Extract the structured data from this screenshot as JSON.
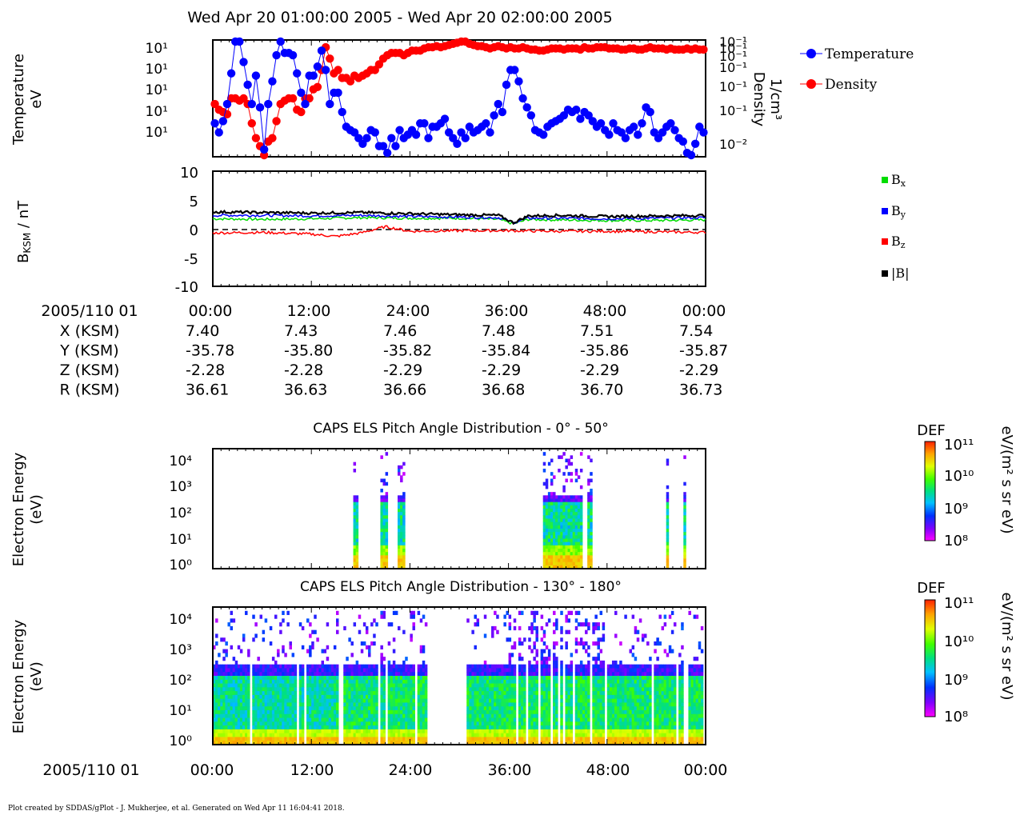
{
  "header": {
    "title": "Wed Apr 20 01:00:00 2005 - Wed Apr 20 02:00:00 2005"
  },
  "footer": {
    "text": "Plot created by SDDAS/gPlot - J. Mukherjee, et al.  Generated on Wed Apr 11 16:04:41 2018."
  },
  "ephemeris": {
    "time_label": "2005/110 01",
    "times": [
      "00:00",
      "12:00",
      "24:00",
      "36:00",
      "48:00",
      "00:00"
    ],
    "rows": [
      {
        "label": "X (KSM)",
        "values": [
          "7.40",
          "7.43",
          "7.46",
          "7.48",
          "7.51",
          "7.54"
        ]
      },
      {
        "label": "Y (KSM)",
        "values": [
          "-35.78",
          "-35.80",
          "-35.82",
          "-35.84",
          "-35.86",
          "-35.87"
        ]
      },
      {
        "label": "Z (KSM)",
        "values": [
          "-2.28",
          "-2.28",
          "-2.29",
          "-2.29",
          "-2.29",
          "-2.29"
        ]
      },
      {
        "label": "R (KSM)",
        "values": [
          "36.61",
          "36.63",
          "36.66",
          "36.68",
          "36.70",
          "36.73"
        ]
      }
    ]
  },
  "bottom_axis": {
    "time_label": "2005/110 01",
    "ticks": [
      "00:00",
      "12:00",
      "24:00",
      "36:00",
      "48:00",
      "00:00"
    ]
  },
  "chart_data": [
    {
      "type": "line",
      "panel": "moments",
      "ylabel": "Temperature eV",
      "ylabel2": "Density 1/cm³",
      "yticks_left": [
        "10¹",
        "10¹",
        "10¹",
        "10¹",
        "10¹"
      ],
      "yticks_right": [
        "10⁻¹",
        "10⁻¹",
        "10⁻¹",
        "10⁻¹",
        "10⁻¹",
        "10⁻¹",
        "10⁻²"
      ],
      "legend_placement": "right",
      "series": [
        {
          "name": "Temperature",
          "color": "#0000ff",
          "axis": "left",
          "y": [
            0.72,
            0.8,
            0.7,
            0.55,
            0.28,
            0.0,
            0.0,
            0.18,
            0.38,
            0.55,
            0.3,
            0.58,
            0.95,
            0.55,
            0.35,
            0.12,
            0.0,
            0.1,
            0.1,
            0.12,
            0.28,
            0.45,
            0.55,
            0.3,
            0.3,
            0.22,
            0.08,
            0.25,
            0.55,
            0.45,
            0.45,
            0.62,
            0.75,
            0.78,
            0.8,
            0.85,
            0.9,
            0.85,
            0.78,
            0.8,
            0.92,
            0.92,
            0.98,
            0.85,
            0.92,
            0.78,
            0.85,
            0.82,
            0.78,
            0.82,
            0.72,
            0.72,
            0.85,
            0.75,
            0.75,
            0.72,
            0.68,
            0.8,
            0.85,
            0.9,
            0.8,
            0.85,
            0.75,
            0.8,
            0.78,
            0.75,
            0.72,
            0.8,
            0.65,
            0.55,
            0.62,
            0.38,
            0.25,
            0.25,
            0.35,
            0.5,
            0.58,
            0.65,
            0.78,
            0.8,
            0.82,
            0.75,
            0.72,
            0.7,
            0.68,
            0.65,
            0.6,
            0.62,
            0.6,
            0.68,
            0.62,
            0.65,
            0.7,
            0.75,
            0.72,
            0.78,
            0.82,
            0.72,
            0.78,
            0.8,
            0.85,
            0.78,
            0.75,
            0.82,
            0.72,
            0.58,
            0.62,
            0.8,
            0.85,
            0.8,
            0.75,
            0.72,
            0.78,
            0.85,
            0.88,
            0.98,
            1.0,
            0.9,
            0.75,
            0.8
          ]
        },
        {
          "name": "Density",
          "color": "#ff0000",
          "axis": "right",
          "y": [
            0.55,
            0.6,
            0.62,
            0.64,
            0.5,
            0.5,
            0.52,
            0.5,
            0.55,
            0.72,
            0.85,
            0.92,
            1.0,
            0.88,
            0.85,
            0.7,
            0.55,
            0.52,
            0.5,
            0.5,
            0.6,
            0.62,
            0.5,
            0.5,
            0.42,
            0.4,
            0.25,
            0.05,
            0.15,
            0.28,
            0.25,
            0.32,
            0.32,
            0.35,
            0.3,
            0.32,
            0.3,
            0.28,
            0.25,
            0.25,
            0.2,
            0.15,
            0.12,
            0.1,
            0.1,
            0.1,
            0.12,
            0.1,
            0.08,
            0.08,
            0.08,
            0.06,
            0.05,
            0.05,
            0.04,
            0.05,
            0.04,
            0.03,
            0.02,
            0.01,
            0.0,
            0.0,
            0.02,
            0.03,
            0.04,
            0.04,
            0.05,
            0.06,
            0.05,
            0.04,
            0.05,
            0.06,
            0.05,
            0.06,
            0.06,
            0.05,
            0.06,
            0.07,
            0.07,
            0.08,
            0.08,
            0.07,
            0.06,
            0.06,
            0.06,
            0.07,
            0.06,
            0.06,
            0.06,
            0.07,
            0.05,
            0.06,
            0.06,
            0.05,
            0.05,
            0.05,
            0.06,
            0.06,
            0.06,
            0.07,
            0.07,
            0.06,
            0.06,
            0.07,
            0.07,
            0.06,
            0.05,
            0.06,
            0.06,
            0.06,
            0.07,
            0.06,
            0.07,
            0.07,
            0.07,
            0.06,
            0.07,
            0.06,
            0.07,
            0.07
          ]
        }
      ]
    },
    {
      "type": "line",
      "panel": "magnetic-field",
      "ylabel": "B_KSM / nT",
      "ylim": [
        -10,
        10
      ],
      "yticks": [
        10,
        5,
        0,
        -5,
        -10
      ],
      "legend_placement": "right",
      "series": [
        {
          "name": "Bx",
          "color": "#00dd00",
          "knots": [
            [
              0,
              1.9
            ],
            [
              0.1,
              1.8
            ],
            [
              0.2,
              1.9
            ],
            [
              0.3,
              2.1
            ],
            [
              0.4,
              2.0
            ],
            [
              0.5,
              2.0
            ],
            [
              0.58,
              1.8
            ],
            [
              0.61,
              1.0
            ],
            [
              0.64,
              1.8
            ],
            [
              0.7,
              1.7
            ],
            [
              0.8,
              1.6
            ],
            [
              0.9,
              1.6
            ],
            [
              1.0,
              1.7
            ]
          ]
        },
        {
          "name": "By",
          "color": "#0000ff",
          "knots": [
            [
              0,
              2.5
            ],
            [
              0.1,
              2.5
            ],
            [
              0.2,
              2.4
            ],
            [
              0.3,
              2.5
            ],
            [
              0.4,
              2.3
            ],
            [
              0.5,
              2.2
            ],
            [
              0.58,
              2.1
            ],
            [
              0.61,
              1.2
            ],
            [
              0.64,
              2.0
            ],
            [
              0.7,
              2.0
            ],
            [
              0.8,
              1.9
            ],
            [
              0.9,
              2.0
            ],
            [
              1.0,
              2.1
            ]
          ]
        },
        {
          "name": "Bz",
          "color": "#ff0000",
          "knots": [
            [
              0,
              -0.6
            ],
            [
              0.1,
              -0.5
            ],
            [
              0.2,
              -0.8
            ],
            [
              0.25,
              -1.2
            ],
            [
              0.3,
              -0.6
            ],
            [
              0.35,
              0.5
            ],
            [
              0.4,
              -0.3
            ],
            [
              0.5,
              -0.2
            ],
            [
              0.6,
              -0.2
            ],
            [
              0.7,
              -0.3
            ],
            [
              0.8,
              -0.3
            ],
            [
              0.9,
              -0.4
            ],
            [
              1.0,
              -0.5
            ]
          ]
        },
        {
          "name": "|B|",
          "color": "#000000",
          "knots": [
            [
              0,
              3.1
            ],
            [
              0.1,
              3.0
            ],
            [
              0.2,
              2.9
            ],
            [
              0.3,
              3.0
            ],
            [
              0.4,
              2.8
            ],
            [
              0.5,
              2.6
            ],
            [
              0.58,
              2.5
            ],
            [
              0.61,
              1.2
            ],
            [
              0.64,
              2.4
            ],
            [
              0.7,
              2.5
            ],
            [
              0.8,
              2.3
            ],
            [
              0.9,
              2.4
            ],
            [
              1.0,
              2.5
            ]
          ]
        }
      ],
      "reference_line": 0
    },
    {
      "type": "heatmap",
      "panel": "els-0-50",
      "title": "CAPS ELS Pitch Angle Distribution - 0° - 50°",
      "ylabel": "Electron Energy (eV)",
      "ytick_labels": [
        "10⁴",
        "10³",
        "10²",
        "10¹",
        "10⁰"
      ],
      "colorbar": {
        "label": "DEF",
        "units": "eV/(m² s sr eV)",
        "ticks": [
          "10¹¹",
          "10¹⁰",
          "10⁹",
          "10⁸"
        ]
      },
      "active_intervals": [
        [
          0.287,
          0.297
        ],
        [
          0.34,
          0.355
        ],
        [
          0.373,
          0.39
        ],
        [
          0.67,
          0.75
        ],
        [
          0.76,
          0.77
        ],
        [
          0.92,
          0.925
        ],
        [
          0.953,
          0.958
        ]
      ]
    },
    {
      "type": "heatmap",
      "panel": "els-130-180",
      "title": "CAPS ELS Pitch Angle Distribution - 130° - 180°",
      "ylabel": "Electron Energy (eV)",
      "ytick_labels": [
        "10⁴",
        "10³",
        "10²",
        "10¹",
        "10⁰"
      ],
      "colorbar": {
        "label": "DEF",
        "units": "eV/(m² s sr eV)",
        "ticks": [
          "10¹¹",
          "10¹⁰",
          "10⁹",
          "10⁸"
        ]
      },
      "gap_intervals": [
        [
          0.435,
          0.515
        ]
      ]
    }
  ],
  "legend_moments": [
    {
      "label": "Temperature",
      "color": "#0000ff"
    },
    {
      "label": "Density",
      "color": "#ff0000"
    }
  ],
  "legend_field": [
    {
      "label": "B",
      "sub": "x",
      "color": "#00dd00"
    },
    {
      "label": "B",
      "sub": "y",
      "color": "#0000ff"
    },
    {
      "label": "B",
      "sub": "z",
      "color": "#ff0000"
    },
    {
      "label": "|B|",
      "sub": "",
      "color": "#000000"
    }
  ],
  "axis_labels": {
    "temp": [
      "Temperature",
      "eV"
    ],
    "dens": [
      "Density",
      "1/cm³"
    ],
    "b": "B",
    "b_sub": "KSM",
    "b_units": " / nT",
    "els": [
      "Electron Energy",
      "(eV)"
    ]
  }
}
